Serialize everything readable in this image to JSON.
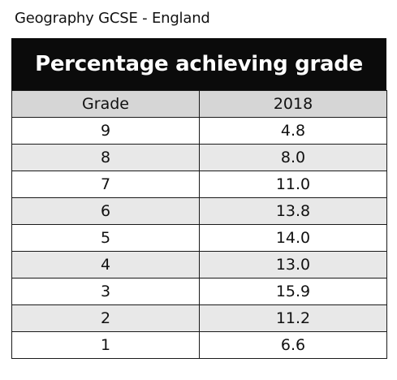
{
  "caption": "Geography GCSE - England",
  "chart_data": {
    "type": "table",
    "title": "Percentage achieving grade",
    "columns": [
      "Grade",
      "2018"
    ],
    "rows": [
      {
        "grade": "9",
        "value": "4.8"
      },
      {
        "grade": "8",
        "value": "8.0"
      },
      {
        "grade": "7",
        "value": "11.0"
      },
      {
        "grade": "6",
        "value": "13.8"
      },
      {
        "grade": "5",
        "value": "14.0"
      },
      {
        "grade": "4",
        "value": "13.0"
      },
      {
        "grade": "3",
        "value": "15.9"
      },
      {
        "grade": "2",
        "value": "11.2"
      },
      {
        "grade": "1",
        "value": "6.6"
      }
    ]
  },
  "colors": {
    "title_background": "#0b0b0b",
    "header_background": "#d6d6d6",
    "row_light": "#ffffff",
    "row_shaded": "#e8e8e8"
  }
}
